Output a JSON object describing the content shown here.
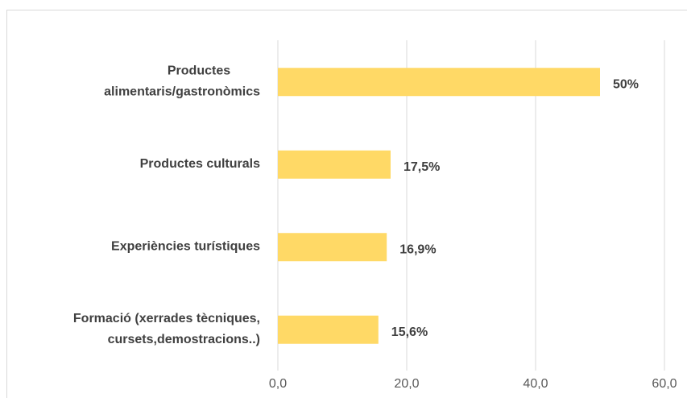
{
  "chart_data": {
    "type": "bar",
    "orientation": "horizontal",
    "categories": [
      "Productes\nalimentaris/gastronòmics",
      "Productes culturals",
      "Experiències turístiques",
      "Formació (xerrades tècniques,\ncursets,demostracions..)"
    ],
    "values": [
      50,
      17.5,
      16.9,
      15.6
    ],
    "value_labels": [
      "50%",
      "17,5%",
      "16,9%",
      "15,6%"
    ],
    "color": "#ffd966",
    "xlim": [
      0,
      60
    ],
    "xticks": [
      {
        "value": 0,
        "label": "0,0"
      },
      {
        "value": 20,
        "label": "20,0"
      },
      {
        "value": 40,
        "label": "40,0"
      },
      {
        "value": 60,
        "label": "60,0"
      }
    ],
    "grid": true
  }
}
